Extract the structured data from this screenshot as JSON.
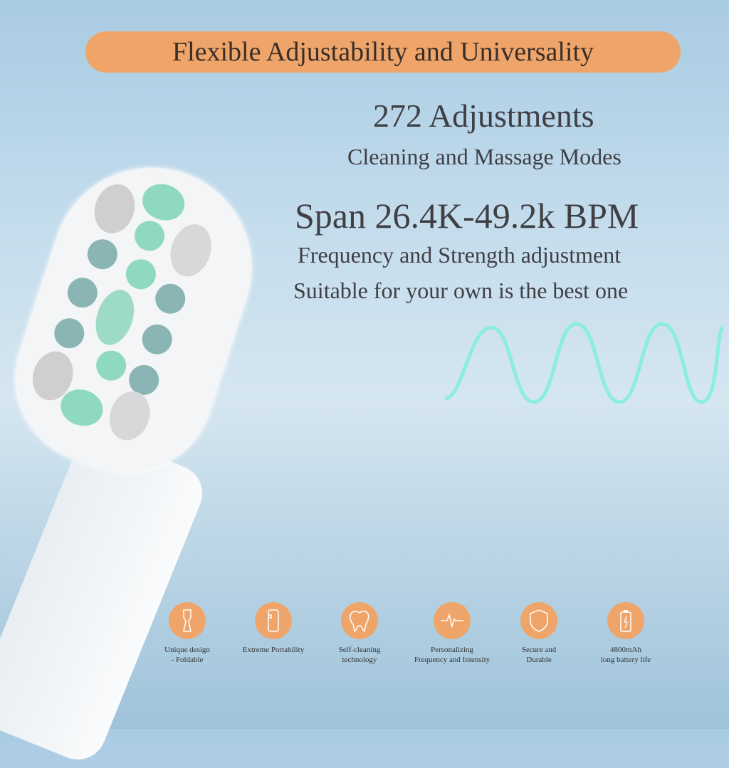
{
  "banner": {
    "title": "Flexible Adjustability and Universality"
  },
  "headline1": "272 Adjustments",
  "sub1": "Cleaning and Massage Modes",
  "headline2": "Span 26.4K-49.2k BPM",
  "sub2": "Frequency and Strength adjustment",
  "sub3": "Suitable for your own is the best one",
  "colors": {
    "accent": "#efa56a",
    "wave": "#7ff0d8"
  },
  "features": [
    {
      "icon": "foldable-brush-icon",
      "line1": "Unique design",
      "line2": "- Foldable"
    },
    {
      "icon": "phone-portable-icon",
      "line1": "Extreme Portability",
      "line2": ""
    },
    {
      "icon": "tooth-icon",
      "line1": "Self-cleaning",
      "line2": "technology"
    },
    {
      "icon": "pulse-icon",
      "line1": "Personalizing",
      "line2": "Frequency and Intensity"
    },
    {
      "icon": "shield-icon",
      "line1": "Secure and",
      "line2": "Durable"
    },
    {
      "icon": "battery-icon",
      "line1": "4800mAh",
      "line2": "long battery life"
    }
  ]
}
